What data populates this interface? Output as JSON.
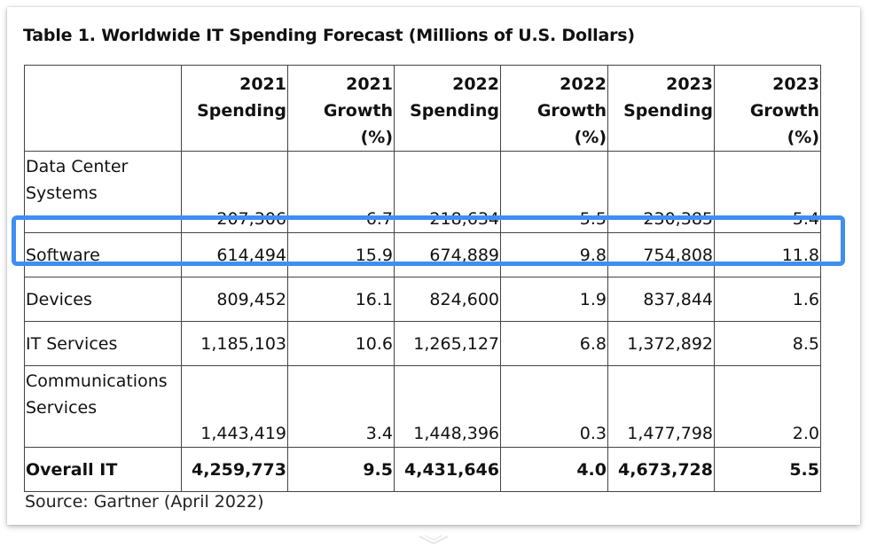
{
  "title": "Table 1. Worldwide IT Spending Forecast (Millions of U.S. Dollars)",
  "columns": [
    {
      "line1": "2021",
      "line2": "Spending"
    },
    {
      "line1": "2021",
      "line2": "Growth (%)"
    },
    {
      "line1": "2022",
      "line2": "Spending"
    },
    {
      "line1": "2022",
      "line2": "Growth (%)"
    },
    {
      "line1": "2023",
      "line2": "Spending"
    },
    {
      "line1": "2023",
      "line2": "Growth (%)"
    }
  ],
  "rows": [
    {
      "category": "Data Center Systems",
      "values": [
        "207,306",
        "6.7",
        "218,634",
        "5.5",
        "230,385",
        "5.4"
      ]
    },
    {
      "category": "Software",
      "values": [
        "614,494",
        "15.9",
        "674,889",
        "9.8",
        "754,808",
        "11.8"
      ]
    },
    {
      "category": "Devices",
      "values": [
        "809,452",
        "16.1",
        "824,600",
        "1.9",
        "837,844",
        "1.6"
      ]
    },
    {
      "category": "IT Services",
      "values": [
        "1,185,103",
        "10.6",
        "1,265,127",
        "6.8",
        "1,372,892",
        "8.5"
      ]
    },
    {
      "category": "Communications Services",
      "values": [
        "1,443,419",
        "3.4",
        "1,448,396",
        "0.3",
        "1,477,798",
        "2.0"
      ]
    },
    {
      "category": "Overall IT",
      "values": [
        "4,259,773",
        "9.5",
        "4,431,646",
        "4.0",
        "4,673,728",
        "5.5"
      ]
    }
  ],
  "source": "Source: Gartner (April 2022)",
  "highlight_color": "#3f8ef0"
}
